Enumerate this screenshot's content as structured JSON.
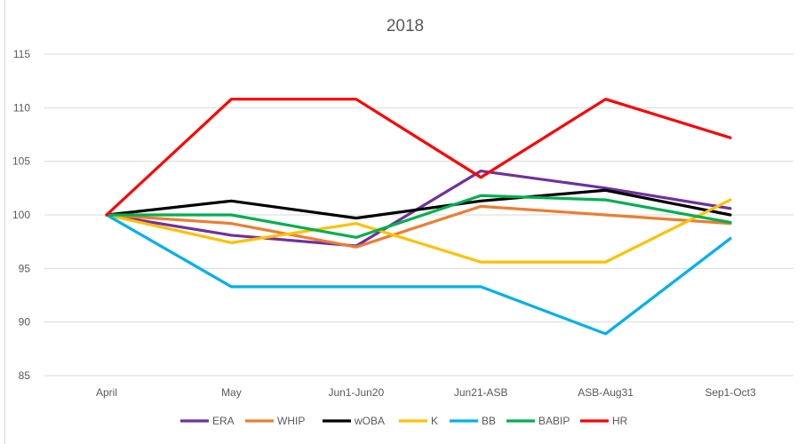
{
  "chart_data": {
    "type": "line",
    "title": "2018",
    "xlabel": "",
    "ylabel": "",
    "categories": [
      "April",
      "May",
      "Jun1-Jun20",
      "Jun21-ASB",
      "ASB-Aug31",
      "Sep1-Oct3"
    ],
    "ylim": [
      85,
      115
    ],
    "yticks": [
      85,
      90,
      95,
      100,
      105,
      110,
      115
    ],
    "grid": true,
    "legend_position": "bottom",
    "series": [
      {
        "name": "ERA",
        "color": "#7030a0",
        "values": [
          100,
          98.1,
          97.1,
          104.1,
          102.5,
          100.6
        ]
      },
      {
        "name": "WHIP",
        "color": "#ed7d31",
        "values": [
          100,
          99.2,
          97.0,
          100.8,
          100.0,
          99.2
        ]
      },
      {
        "name": "wOBA",
        "color": "#000000",
        "values": [
          100,
          101.3,
          99.7,
          101.3,
          102.3,
          100.0
        ]
      },
      {
        "name": "K",
        "color": "#ffc000",
        "values": [
          100,
          97.4,
          99.2,
          95.6,
          95.6,
          101.4
        ]
      },
      {
        "name": "BB",
        "color": "#00b0f0",
        "values": [
          100,
          93.3,
          93.3,
          93.3,
          88.9,
          97.8
        ]
      },
      {
        "name": "BABIP",
        "color": "#00b050",
        "values": [
          100,
          100.0,
          97.9,
          101.8,
          101.4,
          99.3
        ]
      },
      {
        "name": "HR",
        "color": "#ff0000",
        "values": [
          100,
          110.8,
          110.8,
          103.5,
          110.8,
          107.2
        ]
      }
    ]
  }
}
